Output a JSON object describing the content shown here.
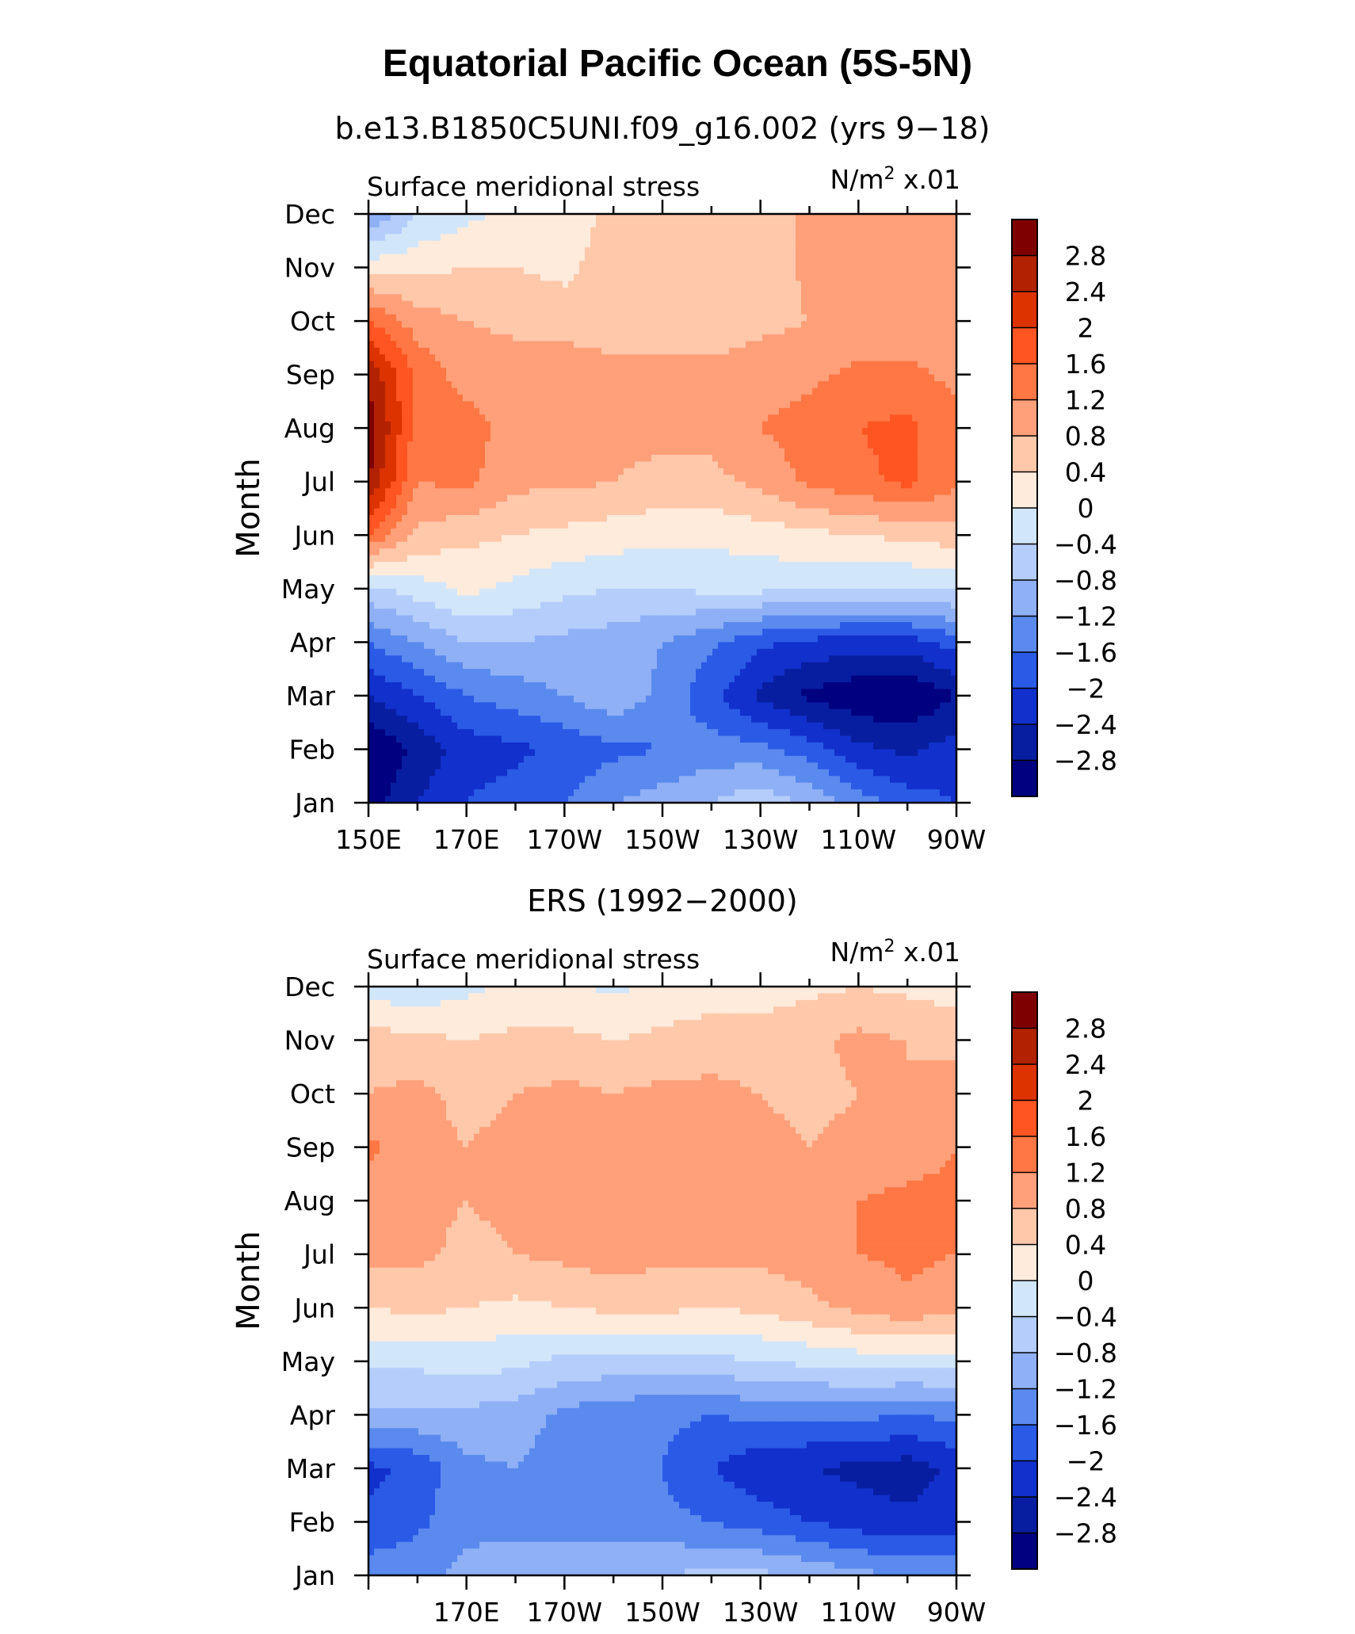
{
  "figure": {
    "main_title": "Equatorial Pacific Ocean (5S-5N)"
  },
  "chart_data": [
    {
      "type": "heatmap",
      "title": "b.e13.B1850C5UNI.f09_g16.002 (yrs 9−18)",
      "left_string": "Surface meridional stress",
      "units_base": "N/m",
      "units_exp": "2",
      "units_scale": " x.01",
      "xlabel": "",
      "ylabel": "Month",
      "xticklabels": [
        "150E",
        "170E",
        "170W",
        "150W",
        "130W",
        "110W",
        "90W"
      ],
      "yticklabels": [
        "Jan",
        "Feb",
        "Mar",
        "Apr",
        "May",
        "Jun",
        "Jul",
        "Aug",
        "Sep",
        "Oct",
        "Nov",
        "Dec"
      ],
      "xlim_lon": [
        150,
        270
      ],
      "ylim_month": [
        1,
        12
      ],
      "field": {
        "lon": [
          150,
          160,
          170,
          180,
          190,
          200,
          210,
          220,
          230,
          240,
          250,
          260,
          270
        ],
        "months": [
          "Jan",
          "Feb",
          "Mar",
          "Apr",
          "May",
          "Jun",
          "Jul",
          "Aug",
          "Sep",
          "Oct",
          "Nov",
          "Dec"
        ],
        "values": [
          [
            -3.0,
            -2.4,
            -2.0,
            -1.8,
            -1.6,
            -1.2,
            -1.0,
            -0.8,
            -0.5,
            -0.9,
            -1.4,
            -1.8,
            -2.0
          ],
          [
            -3.2,
            -2.7,
            -2.2,
            -2.1,
            -1.9,
            -1.7,
            -1.6,
            -1.4,
            -1.5,
            -1.8,
            -2.3,
            -2.5,
            -2.2
          ],
          [
            -2.4,
            -2.0,
            -1.6,
            -1.4,
            -1.2,
            -0.9,
            -1.3,
            -1.9,
            -2.5,
            -2.9,
            -3.1,
            -3.2,
            -2.8
          ],
          [
            -1.6,
            -1.2,
            -0.8,
            -0.8,
            -0.9,
            -1.0,
            -1.2,
            -1.5,
            -1.9,
            -2.1,
            -2.2,
            -2.2,
            -1.8
          ],
          [
            -0.5,
            -0.2,
            0.1,
            -0.1,
            -0.3,
            -0.4,
            -0.4,
            -0.3,
            -0.3,
            -0.3,
            -0.4,
            -0.4,
            -0.3
          ],
          [
            1.6,
            0.7,
            0.5,
            0.4,
            0.3,
            0.2,
            0.1,
            0.1,
            0.2,
            0.3,
            0.4,
            0.5,
            0.6
          ],
          [
            2.8,
            1.2,
            1.3,
            0.9,
            0.9,
            0.8,
            0.7,
            0.7,
            0.9,
            1.3,
            1.5,
            1.7,
            1.3
          ],
          [
            3.1,
            1.4,
            1.4,
            1.0,
            1.0,
            0.9,
            0.9,
            0.9,
            1.2,
            1.4,
            1.6,
            1.7,
            1.3
          ],
          [
            2.7,
            1.5,
            1.0,
            1.0,
            1.1,
            0.9,
            0.9,
            0.9,
            1.0,
            1.1,
            1.3,
            1.3,
            1.1
          ],
          [
            1.6,
            1.0,
            0.8,
            0.7,
            0.6,
            0.6,
            0.6,
            0.6,
            0.7,
            0.8,
            0.9,
            0.9,
            0.9
          ],
          [
            0.2,
            0.3,
            0.4,
            0.4,
            0.3,
            0.6,
            0.6,
            0.6,
            0.5,
            0.9,
            0.9,
            0.9,
            0.9
          ],
          [
            -1.2,
            -0.4,
            -0.1,
            0.1,
            0.2,
            0.5,
            0.6,
            0.6,
            0.6,
            0.9,
            0.9,
            0.9,
            0.9
          ]
        ]
      }
    },
    {
      "type": "heatmap",
      "title": "ERS (1992−2000)",
      "left_string": "Surface meridional stress",
      "units_base": "N/m",
      "units_exp": "2",
      "units_scale": " x.01",
      "xlabel": "",
      "ylabel": "Month",
      "xticklabels": [
        "170E",
        "170W",
        "150W",
        "130W",
        "110W",
        "90W"
      ],
      "yticklabels": [
        "Jan",
        "Feb",
        "Mar",
        "Apr",
        "May",
        "Jun",
        "Jul",
        "Aug",
        "Sep",
        "Oct",
        "Nov",
        "Dec"
      ],
      "xlim_lon": [
        150,
        270
      ],
      "ylim_month": [
        1,
        12
      ],
      "field": {
        "lon": [
          150,
          160,
          170,
          180,
          190,
          200,
          210,
          220,
          230,
          240,
          250,
          260,
          270
        ],
        "months": [
          "Jan",
          "Feb",
          "Mar",
          "Apr",
          "May",
          "Jun",
          "Jul",
          "Aug",
          "Sep",
          "Oct",
          "Nov",
          "Dec"
        ],
        "values": [
          [
            -1.4,
            -1.3,
            -1.1,
            -1.0,
            -0.9,
            -0.9,
            -0.8,
            -0.7,
            -0.7,
            -0.9,
            -1.1,
            -1.2,
            -1.3
          ],
          [
            -1.9,
            -1.7,
            -1.3,
            -1.3,
            -1.4,
            -1.4,
            -1.5,
            -1.6,
            -1.8,
            -2.0,
            -2.2,
            -2.3,
            -2.2
          ],
          [
            -2.1,
            -1.9,
            -1.3,
            -1.2,
            -1.4,
            -1.5,
            -1.6,
            -2.0,
            -2.3,
            -2.4,
            -2.5,
            -2.6,
            -2.3
          ],
          [
            -0.9,
            -0.9,
            -0.9,
            -1.0,
            -1.3,
            -1.5,
            -1.5,
            -1.6,
            -1.5,
            -1.5,
            -1.5,
            -1.6,
            -1.5
          ],
          [
            -0.3,
            -0.3,
            -0.2,
            -0.3,
            -0.5,
            -0.5,
            -0.6,
            -0.5,
            -0.4,
            -0.3,
            -0.2,
            -0.2,
            -0.2
          ],
          [
            0.4,
            0.5,
            0.4,
            0.3,
            0.4,
            0.5,
            0.5,
            0.4,
            0.5,
            0.7,
            0.9,
            1.1,
            0.9
          ],
          [
            0.9,
            0.9,
            0.7,
            0.8,
            0.9,
            1.0,
            0.9,
            0.9,
            0.9,
            1.0,
            1.2,
            1.3,
            1.2
          ],
          [
            1.0,
            0.9,
            0.8,
            0.9,
            0.9,
            1.0,
            1.0,
            1.0,
            1.0,
            1.0,
            1.2,
            1.3,
            1.3
          ],
          [
            1.3,
            0.9,
            0.8,
            0.9,
            0.9,
            1.0,
            1.0,
            1.0,
            0.9,
            0.8,
            0.9,
            1.0,
            1.2
          ],
          [
            0.8,
            0.9,
            0.7,
            0.8,
            0.9,
            0.8,
            0.9,
            0.9,
            0.8,
            0.7,
            0.8,
            0.8,
            1.0
          ],
          [
            0.6,
            0.5,
            0.4,
            0.5,
            0.5,
            0.4,
            0.5,
            0.6,
            0.6,
            0.7,
            0.9,
            0.8,
            0.7
          ],
          [
            -0.2,
            -0.3,
            -0.1,
            0.1,
            0.1,
            -0.1,
            0.1,
            0.2,
            0.2,
            0.3,
            0.4,
            0.3,
            0.2
          ]
        ]
      }
    }
  ],
  "colorbar": {
    "labels": [
      "2.8",
      "2.4",
      "2",
      "1.6",
      "1.2",
      "0.8",
      "0.4",
      "0",
      "−0.4",
      "−0.8",
      "−1.2",
      "−1.6",
      "−2",
      "−2.4",
      "−2.8"
    ],
    "levels": [
      2.8,
      2.4,
      2.0,
      1.6,
      1.2,
      0.8,
      0.4,
      0.0,
      -0.4,
      -0.8,
      -1.2,
      -1.6,
      -2.0,
      -2.4,
      -2.8
    ],
    "colors_top_to_bottom": [
      "#7f0000",
      "#b22200",
      "#dc3300",
      "#ff5522",
      "#ff7744",
      "#ffa07a",
      "#ffc8aa",
      "#ffebdc",
      "#d2e6fa",
      "#b4cdfa",
      "#8fb0f5",
      "#5a8aee",
      "#2a5ae6",
      "#1230cc",
      "#081ea0",
      "#000080"
    ]
  }
}
